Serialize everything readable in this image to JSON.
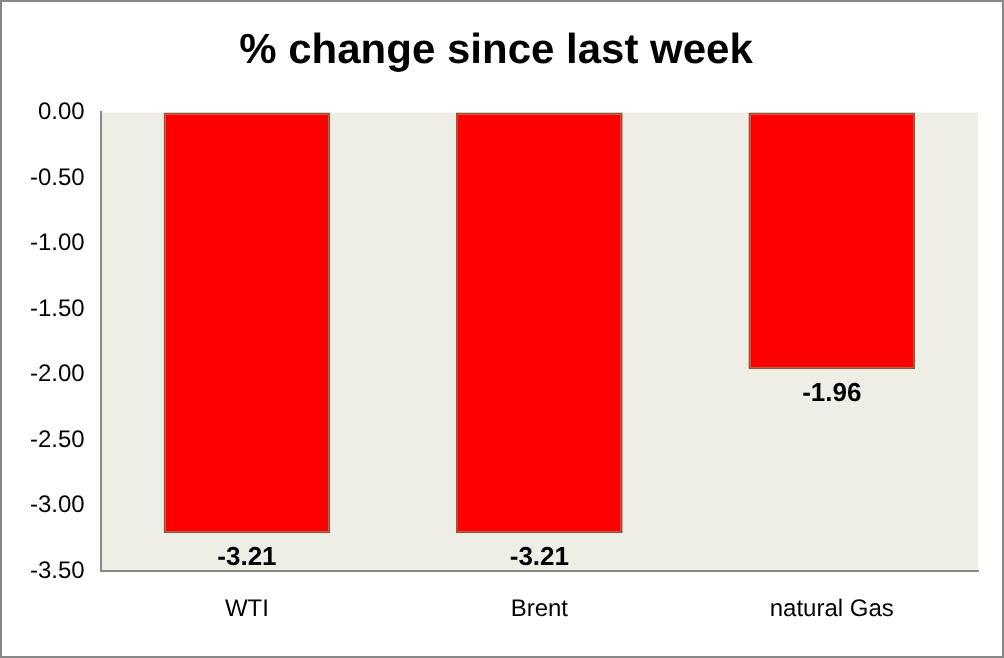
{
  "chart_data": {
    "type": "bar",
    "title": "% change since last week",
    "categories": [
      "WTI",
      "Brent",
      "natural Gas"
    ],
    "values": [
      -3.21,
      -3.21,
      -1.96
    ],
    "color": "#ff0000",
    "ylim": [
      -3.5,
      0
    ],
    "yticks": [
      {
        "value": 0,
        "label": "0.00"
      },
      {
        "value": -0.5,
        "label": "-0.50"
      },
      {
        "value": -1,
        "label": "-1.00"
      },
      {
        "value": -1.5,
        "label": "-1.50"
      },
      {
        "value": -2,
        "label": "-2.00"
      },
      {
        "value": -2.5,
        "label": "-2.50"
      },
      {
        "value": -3,
        "label": "-3.00"
      },
      {
        "value": -3.5,
        "label": "-3.50"
      }
    ],
    "grid": false,
    "legend": false,
    "data_labels": true
  }
}
